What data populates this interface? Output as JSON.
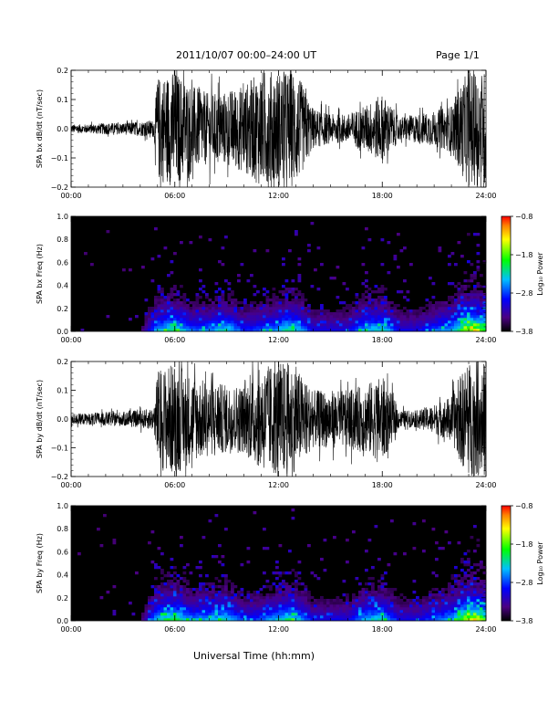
{
  "header": {
    "title": "2011/10/07   00:00–24:00 UT",
    "page": "Page 1/1"
  },
  "footer": {
    "xlabel": "Universal Time (hh:mm)"
  },
  "chart_data": [
    {
      "type": "line",
      "ylabel": "SPA bx dB/dt (nT/sec)",
      "xlim": [
        0,
        24
      ],
      "ylim": [
        -0.2,
        0.2
      ],
      "xticks": [
        "00:00",
        "06:00",
        "12:00",
        "18:00",
        "24:00"
      ],
      "yticks": [
        "−0.2",
        "−0.1",
        "0.0",
        "0.1",
        "0.2"
      ],
      "series": [
        {
          "envelope_hours": [
            0,
            1,
            2,
            3,
            4,
            4.8,
            5,
            6,
            7,
            8,
            9,
            10,
            11,
            12,
            12.5,
            13,
            14,
            15,
            16,
            17,
            18,
            19,
            20,
            21,
            22,
            22.5,
            23,
            24
          ],
          "envelope_amplitude": [
            0.015,
            0.015,
            0.02,
            0.02,
            0.025,
            0.03,
            0.18,
            0.2,
            0.15,
            0.12,
            0.13,
            0.15,
            0.2,
            0.2,
            0.2,
            0.2,
            0.07,
            0.05,
            0.05,
            0.08,
            0.12,
            0.04,
            0.05,
            0.06,
            0.08,
            0.15,
            0.2,
            0.2
          ]
        }
      ],
      "color": "#000000"
    },
    {
      "type": "heatmap",
      "ylabel": "SPA bx Freq (Hz)",
      "xlim": [
        0,
        24
      ],
      "ylim": [
        0,
        1.0
      ],
      "xticks": [
        "00:00",
        "06:00",
        "12:00",
        "18:00",
        "24:00"
      ],
      "yticks": [
        "0.0",
        "0.2",
        "0.4",
        "0.6",
        "0.8",
        "1.0"
      ],
      "colorbar": {
        "label": "Log₁₀ Power",
        "ticks": [
          "−0.8",
          "−1.8",
          "−2.8",
          "−3.8"
        ],
        "range": [
          -3.8,
          -0.8
        ]
      },
      "activity_hours": [
        0,
        2,
        4,
        5,
        6,
        7,
        8,
        9,
        10,
        11,
        12,
        12.5,
        13,
        14,
        16,
        17,
        18,
        19,
        20,
        22,
        23,
        24
      ],
      "activity_level": [
        0.05,
        0.08,
        0.1,
        0.5,
        0.6,
        0.4,
        0.45,
        0.55,
        0.35,
        0.4,
        0.5,
        0.6,
        0.55,
        0.3,
        0.3,
        0.5,
        0.55,
        0.3,
        0.3,
        0.5,
        0.8,
        0.7
      ]
    },
    {
      "type": "line",
      "ylabel": "SPA by dB/dt (nT/sec)",
      "xlim": [
        0,
        24
      ],
      "ylim": [
        -0.2,
        0.2
      ],
      "xticks": [
        "00:00",
        "06:00",
        "12:00",
        "18:00",
        "24:00"
      ],
      "yticks": [
        "−0.2",
        "−0.1",
        "0.0",
        "0.1",
        "0.2"
      ],
      "series": [
        {
          "envelope_hours": [
            0,
            1,
            2,
            3,
            4,
            4.8,
            5,
            6,
            7,
            8,
            9,
            10,
            11,
            12,
            12.5,
            13,
            14,
            15,
            16,
            17,
            18,
            19,
            20,
            21,
            22,
            22.5,
            23,
            24
          ],
          "envelope_amplitude": [
            0.02,
            0.02,
            0.025,
            0.025,
            0.03,
            0.04,
            0.17,
            0.2,
            0.15,
            0.13,
            0.12,
            0.12,
            0.18,
            0.2,
            0.2,
            0.18,
            0.1,
            0.1,
            0.1,
            0.12,
            0.15,
            0.03,
            0.03,
            0.05,
            0.08,
            0.15,
            0.2,
            0.2
          ]
        }
      ],
      "color": "#000000"
    },
    {
      "type": "heatmap",
      "ylabel": "SPA by Freq (Hz)",
      "xlim": [
        0,
        24
      ],
      "ylim": [
        0,
        1.0
      ],
      "xticks": [
        "00:00",
        "06:00",
        "12:00",
        "18:00",
        "24:00"
      ],
      "yticks": [
        "0.0",
        "0.2",
        "0.4",
        "0.6",
        "0.8",
        "1.0"
      ],
      "colorbar": {
        "label": "Log₁₀ Power",
        "ticks": [
          "−0.8",
          "−1.8",
          "−2.8",
          "−3.8"
        ],
        "range": [
          -3.8,
          -0.8
        ]
      },
      "activity_hours": [
        0,
        2,
        4,
        5,
        6,
        7,
        8,
        9,
        10,
        11,
        12,
        12.5,
        13,
        14,
        16,
        17,
        18,
        19,
        20,
        22,
        23,
        24
      ],
      "activity_level": [
        0.05,
        0.08,
        0.1,
        0.55,
        0.65,
        0.45,
        0.5,
        0.55,
        0.35,
        0.4,
        0.5,
        0.6,
        0.55,
        0.3,
        0.3,
        0.5,
        0.55,
        0.3,
        0.3,
        0.5,
        0.8,
        0.7
      ]
    }
  ]
}
